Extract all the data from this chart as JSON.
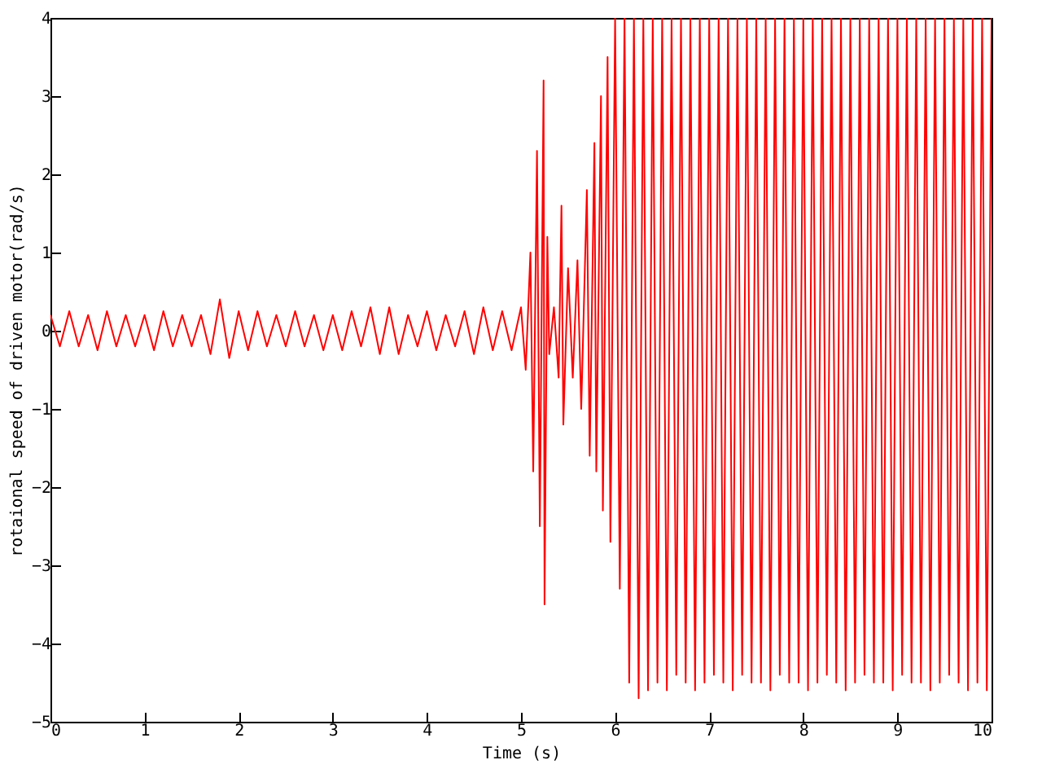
{
  "chart_data": {
    "type": "line",
    "xlabel": "Time (s)",
    "ylabel": "rotaional speed of driven motor(rad/s)",
    "xlim": [
      0,
      10
    ],
    "xticks": [
      0,
      1,
      2,
      3,
      4,
      5,
      6,
      7,
      8,
      9,
      10
    ],
    "ylim": [
      -5,
      4
    ],
    "yticks": [
      -5,
      -4,
      -3,
      -2,
      -1,
      0,
      1,
      2,
      3,
      4
    ],
    "grid": false,
    "series": [
      {
        "color": "#ff0000",
        "x": [
          0,
          0.1,
          0.2,
          0.3,
          0.4,
          0.5,
          0.6,
          0.7,
          0.8,
          0.9,
          1.0,
          1.1,
          1.2,
          1.3,
          1.4,
          1.5,
          1.6,
          1.7,
          1.8,
          1.9,
          2.0,
          2.1,
          2.2,
          2.3,
          2.4,
          2.5,
          2.6,
          2.7,
          2.8,
          2.9,
          3.0,
          3.1,
          3.2,
          3.3,
          3.4,
          3.5,
          3.6,
          3.7,
          3.8,
          3.9,
          4.0,
          4.1,
          4.2,
          4.3,
          4.4,
          4.5,
          4.6,
          4.7,
          4.8,
          4.9,
          5.0,
          5.05,
          5.1,
          5.13,
          5.17,
          5.2,
          5.24,
          5.25,
          5.28,
          5.3,
          5.35,
          5.4,
          5.43,
          5.45,
          5.5,
          5.55,
          5.6,
          5.64,
          5.7,
          5.73,
          5.78,
          5.8,
          5.85,
          5.87,
          5.92,
          5.95,
          6.0,
          6.05,
          6.1,
          6.15,
          6.2,
          6.25,
          6.3,
          6.35,
          6.4,
          6.45,
          6.5,
          6.55,
          6.6,
          6.65,
          6.7,
          6.75,
          6.8,
          6.85,
          6.9,
          6.95,
          7.0,
          7.05,
          7.1,
          7.15,
          7.2,
          7.25,
          7.3,
          7.35,
          7.4,
          7.45,
          7.5,
          7.55,
          7.6,
          7.65,
          7.7,
          7.75,
          7.8,
          7.85,
          7.9,
          7.95,
          8.0,
          8.05,
          8.1,
          8.15,
          8.2,
          8.25,
          8.3,
          8.35,
          8.4,
          8.45,
          8.5,
          8.55,
          8.6,
          8.65,
          8.7,
          8.75,
          8.8,
          8.85,
          8.9,
          8.95,
          9.0,
          9.05,
          9.1,
          9.15,
          9.2,
          9.25,
          9.3,
          9.35,
          9.4,
          9.45,
          9.5,
          9.55,
          9.6,
          9.65,
          9.7,
          9.75,
          9.8,
          9.85,
          9.9,
          9.95,
          10.0
        ],
        "values": [
          0.2,
          -0.2,
          0.25,
          -0.2,
          0.2,
          -0.25,
          0.25,
          -0.2,
          0.2,
          -0.2,
          0.2,
          -0.25,
          0.25,
          -0.2,
          0.2,
          -0.2,
          0.2,
          -0.3,
          0.4,
          -0.35,
          0.25,
          -0.25,
          0.25,
          -0.2,
          0.2,
          -0.2,
          0.25,
          -0.2,
          0.2,
          -0.25,
          0.2,
          -0.25,
          0.25,
          -0.2,
          0.3,
          -0.3,
          0.3,
          -0.3,
          0.2,
          -0.2,
          0.25,
          -0.25,
          0.2,
          -0.2,
          0.25,
          -0.3,
          0.3,
          -0.25,
          0.25,
          -0.25,
          0.3,
          -0.5,
          1.0,
          -1.8,
          2.3,
          -2.5,
          3.2,
          -3.5,
          1.2,
          -0.3,
          0.3,
          -0.6,
          1.6,
          -1.2,
          0.8,
          -0.6,
          0.9,
          -1.0,
          1.8,
          -1.6,
          2.4,
          -1.8,
          3.0,
          -2.3,
          3.5,
          -2.7,
          4,
          -3.3,
          4,
          -4.5,
          4,
          -4.7,
          4,
          -4.6,
          4,
          -4.5,
          4,
          -4.6,
          4,
          -4.4,
          4,
          -4.5,
          4,
          -4.6,
          4,
          -4.5,
          4,
          -4.4,
          4,
          -4.5,
          4,
          -4.6,
          4,
          -4.4,
          4,
          -4.5,
          4,
          -4.5,
          4,
          -4.6,
          4,
          -4.4,
          4,
          -4.5,
          4,
          -4.5,
          4,
          -4.6,
          4,
          -4.5,
          4,
          -4.4,
          4,
          -4.5,
          4,
          -4.6,
          4,
          -4.5,
          4,
          -4.4,
          4,
          -4.5,
          4,
          -4.5,
          4,
          -4.6,
          4,
          -4.4,
          4,
          -4.5,
          4,
          -4.5,
          4,
          -4.6,
          4,
          -4.5,
          4,
          -4.4,
          4,
          -4.5,
          4,
          -4.6,
          4,
          -4.5,
          4,
          -4.6,
          4
        ]
      }
    ]
  }
}
